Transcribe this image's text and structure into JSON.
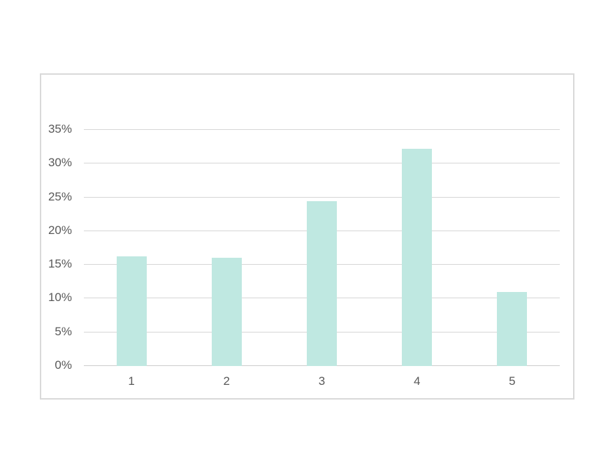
{
  "chart_data": {
    "type": "bar",
    "title": "",
    "xlabel": "",
    "ylabel": "",
    "categories": [
      "1",
      "2",
      "3",
      "4",
      "5"
    ],
    "values": [
      16.3,
      16.0,
      24.4,
      32.2,
      11.0
    ],
    "ylim": [
      0,
      35
    ],
    "ytick_values": [
      0,
      5,
      10,
      15,
      20,
      25,
      30,
      35
    ],
    "ytick_labels": [
      "0%",
      "5%",
      "10%",
      "15%",
      "20%",
      "25%",
      "30%",
      "35%"
    ],
    "grid": true,
    "legend": false,
    "colors": {
      "bar_fill": "#bfe8e1",
      "gridline": "#d6d6d6",
      "axis_line": "#cccccc",
      "label_text": "#595959",
      "frame_border": "#d9d9d9",
      "background": "#ffffff"
    }
  }
}
